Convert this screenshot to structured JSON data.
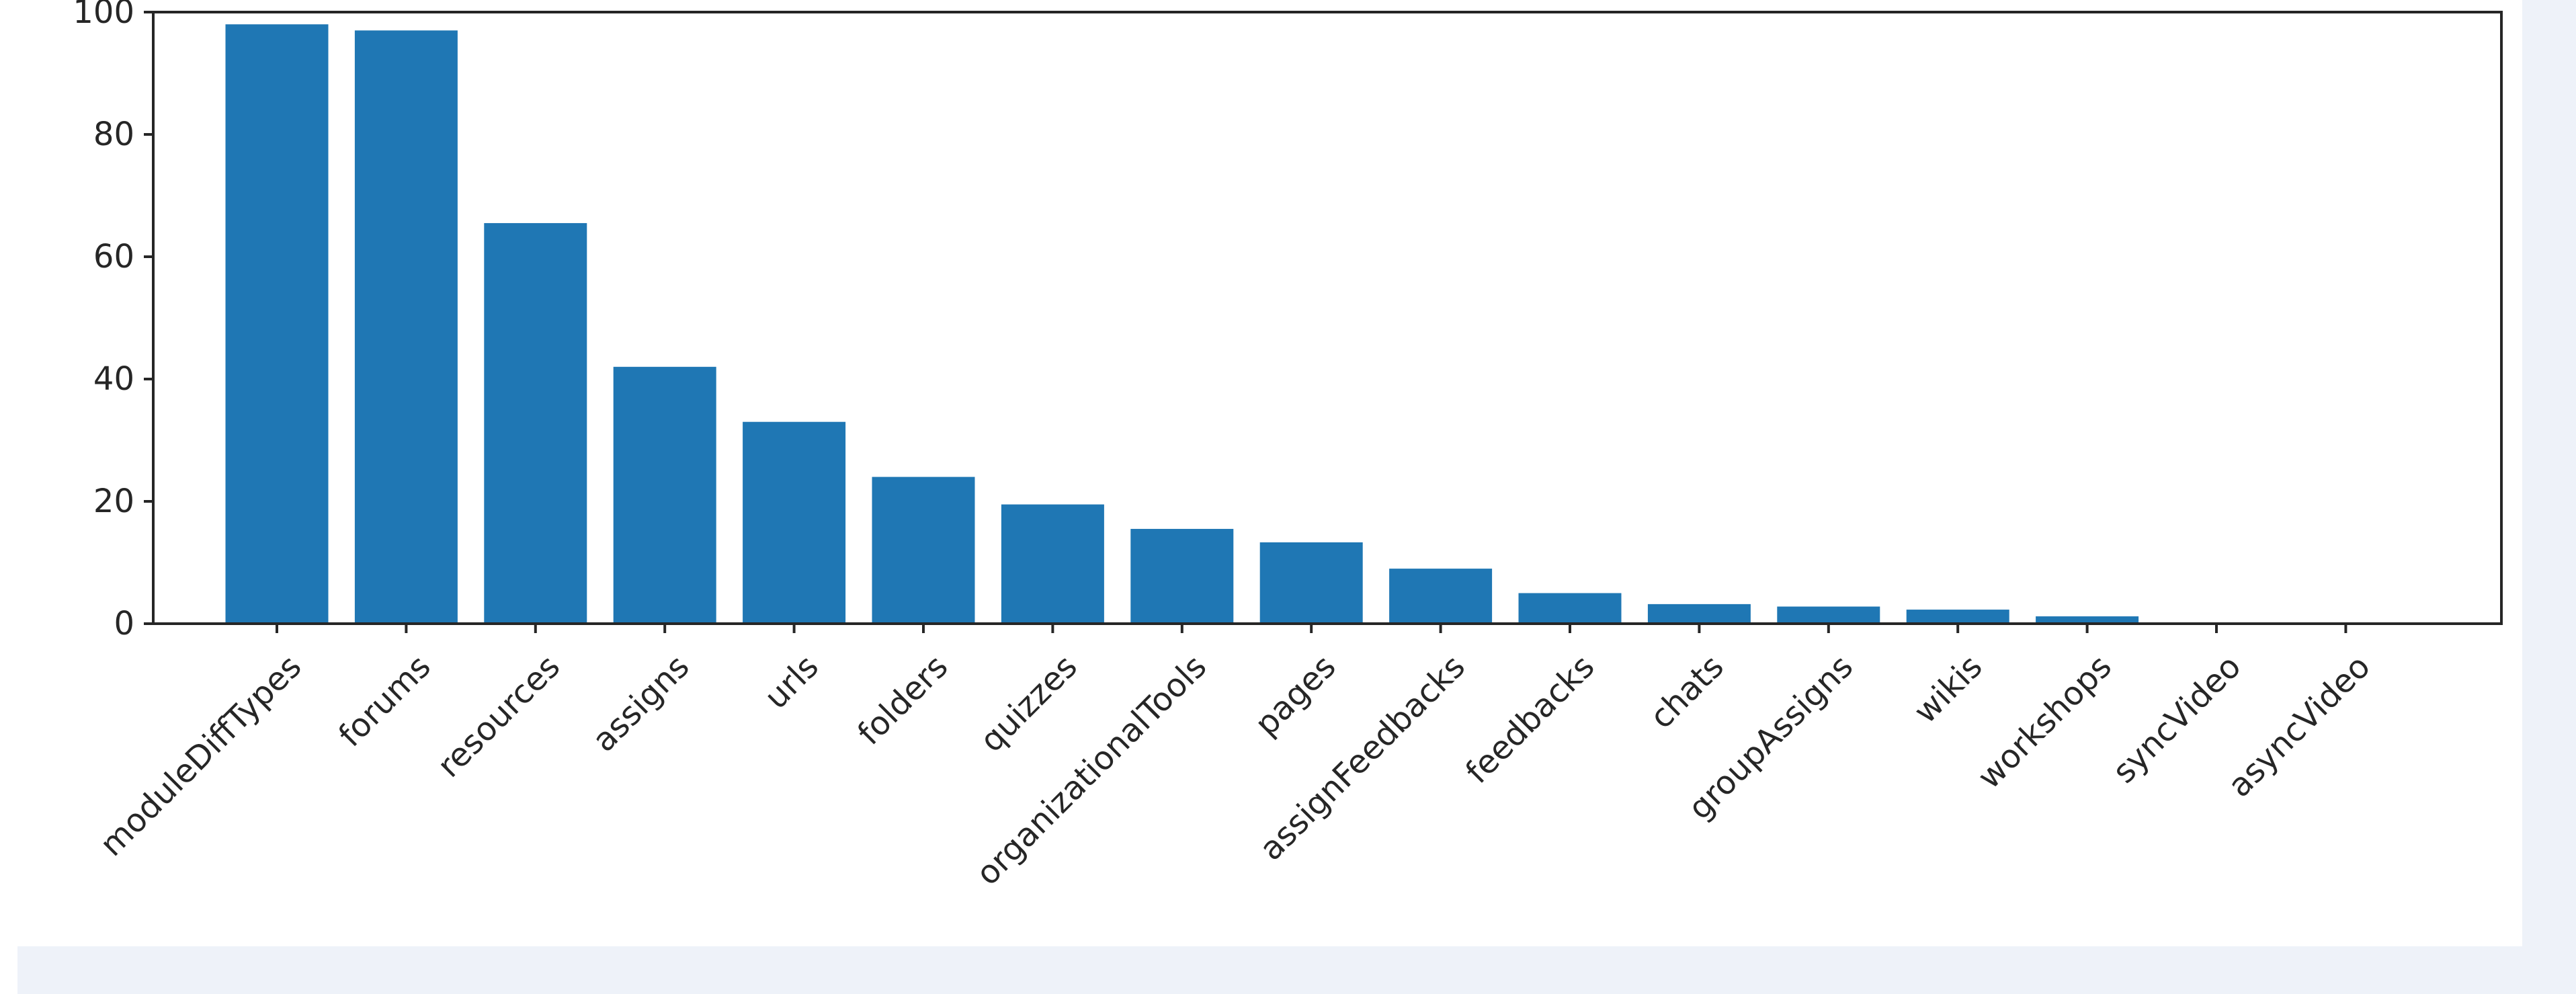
{
  "chart_data": {
    "type": "bar",
    "categories": [
      "moduleDiffTypes",
      "forums",
      "resources",
      "assigns",
      "urls",
      "folders",
      "quizzes",
      "organizationalTools",
      "pages",
      "assignFeedbacks",
      "feedbacks",
      "chats",
      "groupAssigns",
      "wikis",
      "workshops",
      "syncVideo",
      "asyncVideo"
    ],
    "values": [
      98,
      97,
      65.5,
      42,
      33,
      24,
      19.5,
      15.5,
      13.3,
      9,
      5,
      3.2,
      2.8,
      2.3,
      1.2,
      0,
      0
    ],
    "ylim": [
      0,
      100
    ],
    "yticks": [
      "0",
      "20",
      "40",
      "60",
      "80",
      "100"
    ],
    "grid": false,
    "colors": {
      "bar": "#1f77b4",
      "axis": "#262626",
      "text": "#262626"
    }
  }
}
